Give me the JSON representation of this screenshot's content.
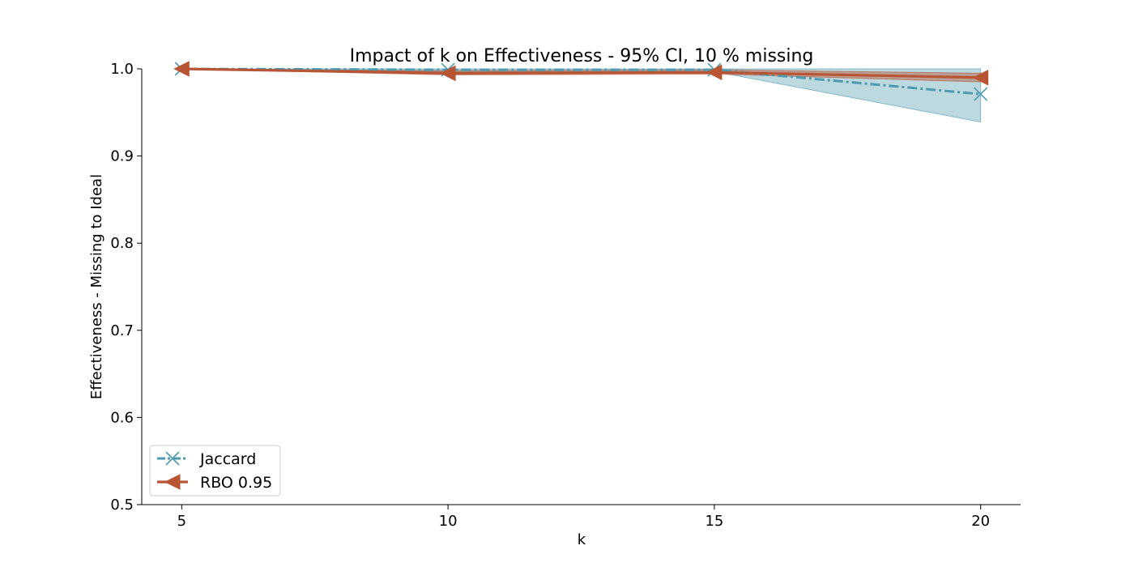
{
  "chart_data": {
    "type": "line",
    "title": "Impact of k on Effectiveness - 95% CI, 10 % missing",
    "xlabel": "k",
    "ylabel": "Effectiveness - Missing to Ideal",
    "x": [
      5,
      10,
      15,
      20
    ],
    "xlim": [
      4.25,
      20.75
    ],
    "ylim": [
      0.5,
      1.0
    ],
    "x_ticks": [
      5,
      10,
      15,
      20
    ],
    "y_ticks": [
      0.5,
      0.6,
      0.7,
      0.8,
      0.9,
      1.0
    ],
    "x_tick_labels": [
      "5",
      "10",
      "15",
      "20"
    ],
    "y_tick_labels": [
      "0.5",
      "0.6",
      "0.7",
      "0.8",
      "0.9",
      "1.0"
    ],
    "grid": false,
    "legend_position": "lower-left",
    "series": [
      {
        "name": "Jaccard",
        "values": [
          1.0,
          0.999,
          0.999,
          0.971
        ],
        "ci_lower": [
          1.0,
          0.997,
          0.997,
          0.939
        ],
        "ci_upper": [
          1.0,
          1.0,
          1.0,
          1.0
        ],
        "color": "#4e9aae",
        "line_style": "dash-dot",
        "marker": "x"
      },
      {
        "name": "RBO 0.95",
        "values": [
          1.0,
          0.995,
          0.996,
          0.99
        ],
        "ci_lower": [
          1.0,
          0.993,
          0.994,
          0.985
        ],
        "ci_upper": [
          1.0,
          0.998,
          0.999,
          0.995
        ],
        "color": "#b75535",
        "line_style": "solid",
        "marker": "triangle-left"
      }
    ]
  }
}
